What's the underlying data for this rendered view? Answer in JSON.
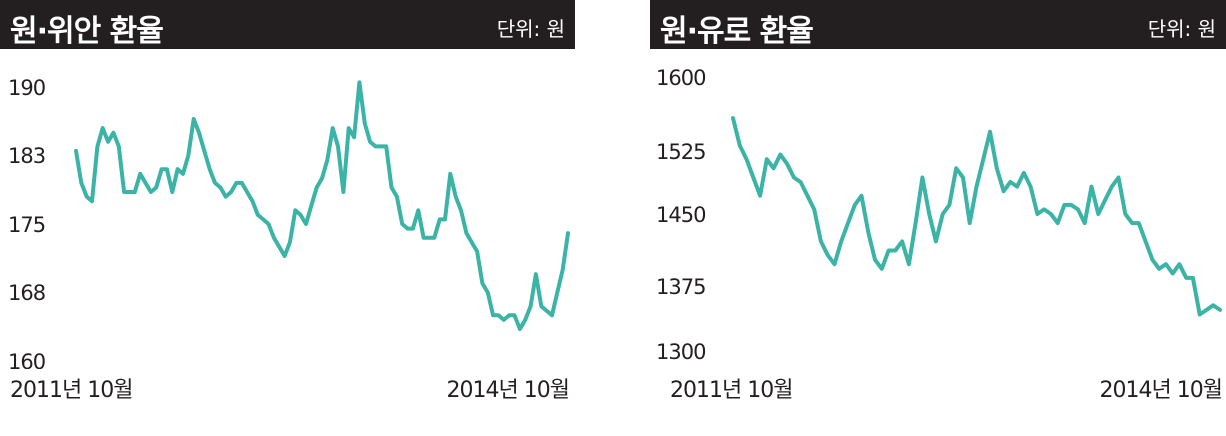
{
  "colors": {
    "line": "#3bb3a6",
    "title_bg": "#231f20",
    "text": "#231f20"
  },
  "chart_data": [
    {
      "type": "line",
      "title": "원·위안 환율",
      "unit": "단위: 원",
      "y_ticks": [
        "190",
        "183",
        "175",
        "168",
        "160"
      ],
      "ylim": [
        160,
        190
      ],
      "x_start_label": "2011년 10월",
      "x_end_label": "2014년 10월",
      "values": [
        183,
        179.5,
        178,
        177.5,
        183.5,
        185.5,
        184,
        185,
        183.5,
        178.5,
        178.5,
        178.5,
        180.5,
        179.5,
        178.5,
        179,
        181,
        181,
        178.5,
        181,
        180.5,
        182.5,
        186.5,
        185,
        183,
        181,
        179.5,
        179,
        178,
        178.5,
        179.5,
        179.5,
        178.5,
        177.5,
        176,
        175.5,
        175,
        173.5,
        172.5,
        171.5,
        173,
        176.5,
        176,
        175,
        177,
        179,
        180,
        182,
        185.5,
        183.5,
        178.5,
        185.5,
        184.5,
        190.5,
        186,
        184,
        183.5,
        183.5,
        183.5,
        179,
        178,
        175,
        174.5,
        174.5,
        176.5,
        173.5,
        173.5,
        173.5,
        175.5,
        175.5,
        180.5,
        178,
        176.5,
        174,
        173,
        172,
        168.5,
        167.5,
        165,
        165,
        164.5,
        165,
        165,
        163.5,
        164.5,
        166,
        169.5,
        166,
        165.5,
        165,
        167.5,
        170,
        174
      ]
    },
    {
      "type": "line",
      "title": "원·유로 환율",
      "unit": "단위: 원",
      "y_ticks": [
        "1600",
        "1525",
        "1450",
        "1375",
        "1300"
      ],
      "ylim": [
        1300,
        1600
      ],
      "x_start_label": "2011년 10월",
      "x_end_label": "2014년 10월",
      "values": [
        1555,
        1525,
        1510,
        1490,
        1470,
        1510,
        1500,
        1515,
        1505,
        1490,
        1485,
        1470,
        1455,
        1420,
        1405,
        1395,
        1420,
        1440,
        1460,
        1470,
        1430,
        1400,
        1390,
        1410,
        1410,
        1420,
        1395,
        1440,
        1490,
        1450,
        1420,
        1450,
        1460,
        1500,
        1490,
        1440,
        1480,
        1510,
        1540,
        1500,
        1475,
        1485,
        1480,
        1495,
        1480,
        1450,
        1455,
        1450,
        1440,
        1460,
        1460,
        1455,
        1440,
        1480,
        1450,
        1465,
        1480,
        1490,
        1450,
        1440,
        1440,
        1420,
        1400,
        1390,
        1395,
        1385,
        1395,
        1380,
        1380,
        1340,
        1345,
        1350,
        1345
      ]
    }
  ]
}
